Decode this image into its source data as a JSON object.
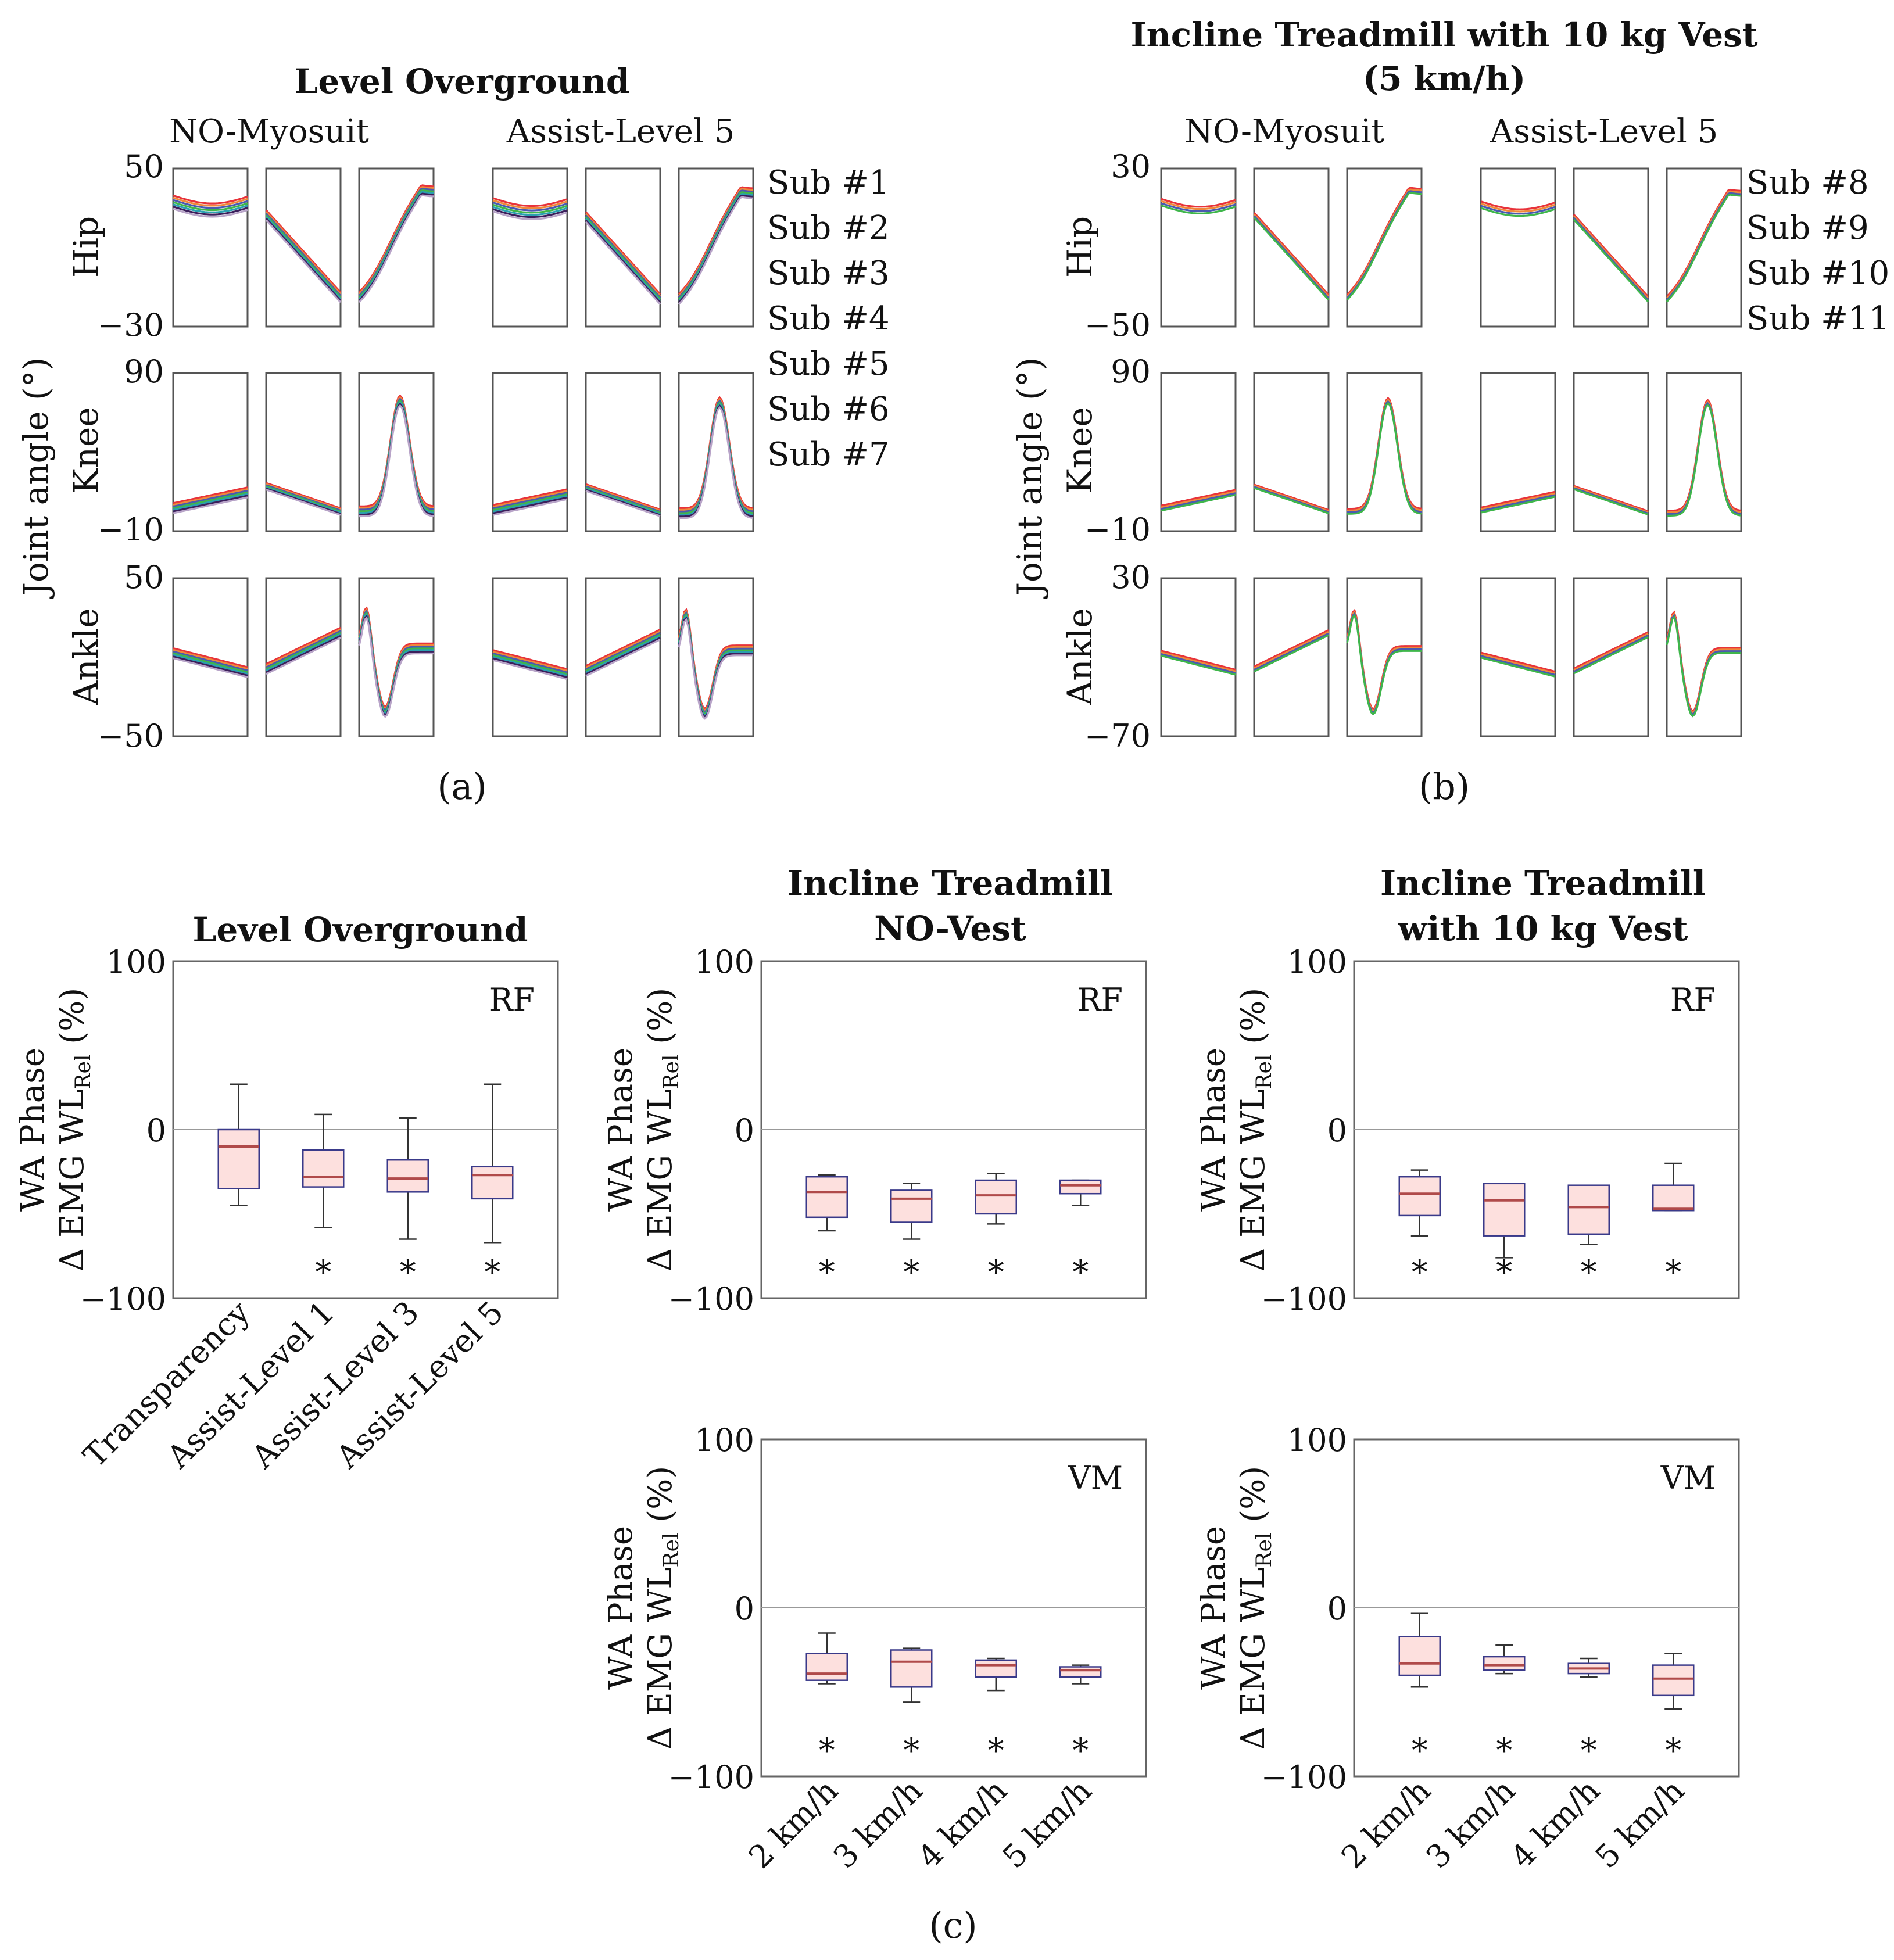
{
  "panel_a": {
    "title": "Level Overground",
    "col_labels": [
      "NO-Myosuit",
      "Assist-Level 5"
    ],
    "y_axis_label": "Joint angle (°)",
    "rows": [
      {
        "label": "Hip",
        "ymax": "50",
        "ymin": "−30"
      },
      {
        "label": "Knee",
        "ymax": "90",
        "ymin": "−10"
      },
      {
        "label": "Ankle",
        "ymax": "50",
        "ymin": "−50"
      }
    ],
    "legend": [
      {
        "label": "Sub #1",
        "color": "#e8333a"
      },
      {
        "label": "Sub #2",
        "color": "#f0883a"
      },
      {
        "label": "Sub #3",
        "color": "#4a5ab0"
      },
      {
        "label": "Sub #4",
        "color": "#3fb64b"
      },
      {
        "label": "Sub #5",
        "color": "#2a9fb0"
      },
      {
        "label": "Sub #6",
        "color": "#3c1f5c"
      },
      {
        "label": "Sub #7",
        "color": "#b8a4c8"
      }
    ],
    "caption": "(a)"
  },
  "panel_b": {
    "title_line1": "Incline Treadmill with 10 kg Vest",
    "title_line2": "(5 km/h)",
    "col_labels": [
      "NO-Myosuit",
      "Assist-Level 5"
    ],
    "y_axis_label": "Joint angle (°)",
    "rows": [
      {
        "label": "Hip",
        "ymax": "30",
        "ymin": "−50"
      },
      {
        "label": "Knee",
        "ymax": "90",
        "ymin": "−10"
      },
      {
        "label": "Ankle",
        "ymax": "30",
        "ymin": "−70"
      }
    ],
    "legend": [
      {
        "label": "Sub #8",
        "color": "#e8333a"
      },
      {
        "label": "Sub #9",
        "color": "#f0883a"
      },
      {
        "label": "Sub #10",
        "color": "#4a5ab0"
      },
      {
        "label": "Sub #11",
        "color": "#3fb64b"
      }
    ],
    "caption": "(b)"
  },
  "panel_c": {
    "caption": "(c)",
    "y_label_line1": "WA Phase",
    "y_label_line2_pre": "Δ EMG WL",
    "y_label_sub": "Rel",
    "y_label_post": " (%)",
    "y_ticks": [
      "100",
      "0",
      "−100"
    ],
    "star": "*",
    "box_fill": "#fde0de",
    "box_stroke": "#3a3a8a",
    "median_color": "#b04a4a",
    "titles": {
      "level": "Level Overground",
      "novest_line1": "Incline Treadmill",
      "novest_line2": "NO-Vest",
      "vest_line1": "Incline Treadmill",
      "vest_line2": "with 10 kg Vest"
    }
  },
  "chart_data": [
    {
      "type": "box",
      "title": "Level Overground",
      "muscle": "RF",
      "ylim": [
        -100,
        100
      ],
      "categories": [
        "Transparency",
        "Assist-Level 1",
        "Assist-Level 3",
        "Assist-Level 5"
      ],
      "boxes": [
        {
          "min": -45,
          "q1": -35,
          "median": -10,
          "q3": 0,
          "max": 27,
          "sig": false
        },
        {
          "min": -58,
          "q1": -34,
          "median": -28,
          "q3": -12,
          "max": 9,
          "sig": true
        },
        {
          "min": -65,
          "q1": -37,
          "median": -29,
          "q3": -18,
          "max": 7,
          "sig": true
        },
        {
          "min": -67,
          "q1": -41,
          "median": -27,
          "q3": -22,
          "max": 27,
          "sig": true
        }
      ]
    },
    {
      "type": "box",
      "title": "Incline Treadmill NO-Vest",
      "muscle": "RF",
      "ylim": [
        -100,
        100
      ],
      "categories": [
        "2 km/h",
        "3 km/h",
        "4 km/h",
        "5 km/h"
      ],
      "boxes": [
        {
          "min": -60,
          "q1": -52,
          "median": -37,
          "q3": -28,
          "max": -27,
          "sig": true
        },
        {
          "min": -65,
          "q1": -55,
          "median": -41,
          "q3": -36,
          "max": -32,
          "sig": true
        },
        {
          "min": -56,
          "q1": -50,
          "median": -39,
          "q3": -30,
          "max": -26,
          "sig": true
        },
        {
          "min": -45,
          "q1": -38,
          "median": -33,
          "q3": -30,
          "max": -30,
          "sig": true
        }
      ]
    },
    {
      "type": "box",
      "title": "Incline Treadmill with 10 kg Vest",
      "muscle": "RF",
      "ylim": [
        -100,
        100
      ],
      "categories": [
        "2 km/h",
        "3 km/h",
        "4 km/h",
        "5 km/h"
      ],
      "boxes": [
        {
          "min": -63,
          "q1": -51,
          "median": -38,
          "q3": -28,
          "max": -24,
          "sig": true
        },
        {
          "min": -76,
          "q1": -63,
          "median": -42,
          "q3": -32,
          "max": -32,
          "sig": true
        },
        {
          "min": -68,
          "q1": -62,
          "median": -46,
          "q3": -33,
          "max": -33,
          "sig": true
        },
        {
          "min": -48,
          "q1": -48,
          "median": -47,
          "q3": -33,
          "max": -20,
          "sig": true
        }
      ]
    },
    {
      "type": "box",
      "title": "Incline Treadmill NO-Vest",
      "muscle": "VM",
      "ylim": [
        -100,
        100
      ],
      "categories": [
        "2 km/h",
        "3 km/h",
        "4 km/h",
        "5 km/h"
      ],
      "boxes": [
        {
          "min": -45,
          "q1": -43,
          "median": -39,
          "q3": -27,
          "max": -15,
          "sig": true
        },
        {
          "min": -56,
          "q1": -47,
          "median": -32,
          "q3": -25,
          "max": -24,
          "sig": true
        },
        {
          "min": -49,
          "q1": -41,
          "median": -34,
          "q3": -31,
          "max": -30,
          "sig": true
        },
        {
          "min": -45,
          "q1": -41,
          "median": -37,
          "q3": -35,
          "max": -34,
          "sig": true
        }
      ]
    },
    {
      "type": "box",
      "title": "Incline Treadmill with 10 kg Vest",
      "muscle": "VM",
      "ylim": [
        -100,
        100
      ],
      "categories": [
        "2 km/h",
        "3 km/h",
        "4 km/h",
        "5 km/h"
      ],
      "boxes": [
        {
          "min": -47,
          "q1": -40,
          "median": -33,
          "q3": -17,
          "max": -3,
          "sig": true
        },
        {
          "min": -39,
          "q1": -37,
          "median": -34,
          "q3": -29,
          "max": -22,
          "sig": true
        },
        {
          "min": -41,
          "q1": -39,
          "median": -36,
          "q3": -33,
          "max": -30,
          "sig": true
        },
        {
          "min": -60,
          "q1": -52,
          "median": -42,
          "q3": -34,
          "max": -27,
          "sig": true
        }
      ]
    }
  ]
}
